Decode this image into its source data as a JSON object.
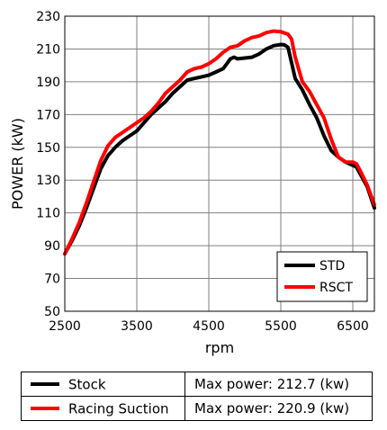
{
  "chart_data": {
    "type": "line",
    "title": "",
    "xlabel": "rpm",
    "ylabel": "POWER (kW)",
    "xlim": [
      2500,
      6800
    ],
    "ylim": [
      50,
      230
    ],
    "x_ticks": [
      2500,
      3500,
      4500,
      5500,
      6500
    ],
    "y_ticks": [
      50,
      70,
      90,
      110,
      130,
      150,
      170,
      190,
      210,
      230
    ],
    "grid": true,
    "legend": {
      "position": "bottom-right",
      "entries": [
        "STD",
        "RSCT"
      ]
    },
    "series": [
      {
        "name": "STD",
        "color": "#000000",
        "x": [
          2500,
          2600,
          2700,
          2800,
          2900,
          3000,
          3100,
          3200,
          3300,
          3400,
          3500,
          3600,
          3700,
          3800,
          3900,
          4000,
          4100,
          4200,
          4300,
          4400,
          4500,
          4600,
          4700,
          4800,
          4850,
          4900,
          5000,
          5100,
          5200,
          5300,
          5400,
          5500,
          5550,
          5600,
          5700,
          5800,
          5900,
          6000,
          6100,
          6200,
          6300,
          6400,
          6500,
          6550,
          6600,
          6700,
          6800
        ],
        "y": [
          85,
          93,
          102,
          113,
          125,
          137,
          145,
          150,
          154,
          157,
          160,
          165,
          170,
          174,
          178,
          183,
          187,
          191,
          192,
          193,
          194,
          196,
          198,
          204,
          205,
          204,
          204.5,
          205,
          207,
          210,
          212,
          212.7,
          212.5,
          211,
          192,
          185,
          176,
          168,
          157,
          148,
          144,
          141,
          139,
          138,
          134,
          126,
          113
        ]
      },
      {
        "name": "RSCT",
        "color": "#ff0000",
        "x": [
          2500,
          2600,
          2700,
          2800,
          2900,
          3000,
          3100,
          3200,
          3300,
          3400,
          3500,
          3600,
          3700,
          3800,
          3900,
          4000,
          4100,
          4200,
          4300,
          4400,
          4500,
          4600,
          4700,
          4800,
          4900,
          5000,
          5100,
          5200,
          5300,
          5400,
          5500,
          5600,
          5650,
          5700,
          5800,
          5900,
          6000,
          6100,
          6200,
          6300,
          6400,
          6500,
          6550,
          6600,
          6700,
          6800
        ],
        "y": [
          85,
          94,
          104,
          116,
          129,
          142,
          151,
          156,
          159,
          162,
          165,
          168,
          172,
          177,
          183,
          187,
          191,
          196,
          198,
          199,
          201,
          204,
          208,
          211,
          212,
          215,
          217,
          218,
          220,
          220.9,
          220.5,
          219,
          216,
          205,
          190,
          184,
          176,
          168,
          155,
          144,
          141,
          141,
          140,
          136,
          127,
          115
        ]
      }
    ]
  },
  "table": {
    "rows": [
      {
        "label": "Stock",
        "value": "Max power: 212.7 (kw)",
        "color": "#000000"
      },
      {
        "label": "Racing Suction",
        "value": "Max power: 220.9 (kw)",
        "color": "#ff0000"
      }
    ]
  }
}
